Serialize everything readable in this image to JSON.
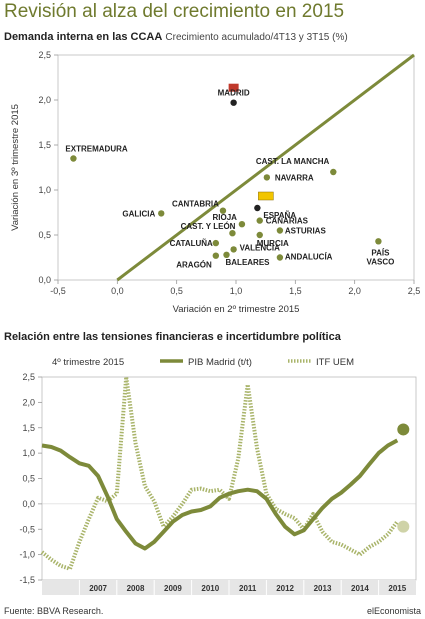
{
  "page": {
    "headline": "Revisión al alza del crecimiento en 2015",
    "subtitle1_bold": "Demanda interna en las CCAA",
    "subtitle1_light": "Crecimiento acumulado/4T13 y 3T15 (%)",
    "subtitle2": "Relación entre las tensiones financieras e incertidumbre política",
    "source": "Fuente: BBVA Research.",
    "brand": "elEconomista"
  },
  "chart_data": [
    {
      "type": "scatter",
      "title": "Demanda interna en las CCAA",
      "xlabel": "Variación en 2º trimestre 2015",
      "ylabel": "Variación en 3º trimestre 2015",
      "xlim": [
        -0.5,
        2.5
      ],
      "ylim": [
        0,
        2.5
      ],
      "x_ticks": [
        "-0,5",
        "0,0",
        "0,5",
        "1,0",
        "1,5",
        "2,0",
        "2,5"
      ],
      "y_ticks": [
        "0,0",
        "0,5",
        "1,0",
        "1,5",
        "2,0",
        "2,5"
      ],
      "reference_line": "y = x",
      "colors": {
        "point": "#7d8a3a",
        "highlight": "#222222",
        "line": "#7d8a3a",
        "badge_madrid": "#c0392b",
        "badge_espana": "#f2c500"
      },
      "points": [
        {
          "name": "EXTREMADURA",
          "x": -0.37,
          "y": 1.35
        },
        {
          "name": "MADRID",
          "x": 0.98,
          "y": 1.97,
          "highlight": true,
          "badge": "madrid"
        },
        {
          "name": "CAST. LA MANCHA",
          "x": 1.82,
          "y": 1.2
        },
        {
          "name": "NAVARRA",
          "x": 1.26,
          "y": 1.14
        },
        {
          "name": "ESPAÑA",
          "x": 1.18,
          "y": 0.8,
          "highlight": true,
          "badge": "espana"
        },
        {
          "name": "CANTABRIA",
          "x": 0.89,
          "y": 0.77
        },
        {
          "name": "CANARIAS",
          "x": 1.2,
          "y": 0.66
        },
        {
          "name": "GALICIA",
          "x": 0.37,
          "y": 0.74
        },
        {
          "name": "RIOJA",
          "x": 1.05,
          "y": 0.62
        },
        {
          "name": "ASTURIAS",
          "x": 1.37,
          "y": 0.55
        },
        {
          "name": "CAST. Y LEÓN",
          "x": 0.97,
          "y": 0.52
        },
        {
          "name": "MURCIA",
          "x": 1.2,
          "y": 0.5
        },
        {
          "name": "CATALUÑA",
          "x": 0.83,
          "y": 0.41
        },
        {
          "name": "VALENCIA",
          "x": 0.98,
          "y": 0.34
        },
        {
          "name": "ARAGÓN",
          "x": 0.83,
          "y": 0.27
        },
        {
          "name": "BALEARES",
          "x": 0.92,
          "y": 0.28
        },
        {
          "name": "ANDALUCÍA",
          "x": 1.37,
          "y": 0.25
        },
        {
          "name": "PAÍS\nVASCO",
          "x": 2.2,
          "y": 0.43
        }
      ]
    },
    {
      "type": "line",
      "title": "Relación entre las tensiones financieras e incertidumbre política",
      "legend_title": "4º trimestre 2015",
      "ylim": [
        -1.5,
        2.5
      ],
      "y_ticks": [
        "2,5",
        "2,0",
        "1,5",
        "1,0",
        "0,5",
        "0,0",
        "-0,5",
        "-1,0",
        "-1,5"
      ],
      "x_years": [
        "2007",
        "2008",
        "2009",
        "2010",
        "2011",
        "2012",
        "2013",
        "2014",
        "2015"
      ],
      "x_range": [
        2006.0,
        2016.0
      ],
      "series": [
        {
          "name": "PIB Madrid (t/t)",
          "style": "solid",
          "color": "#7d8a3a",
          "x": [
            2006.0,
            2006.25,
            2006.5,
            2006.75,
            2007.0,
            2007.25,
            2007.5,
            2007.75,
            2008.0,
            2008.25,
            2008.5,
            2008.75,
            2009.0,
            2009.25,
            2009.5,
            2009.75,
            2010.0,
            2010.25,
            2010.5,
            2010.75,
            2011.0,
            2011.25,
            2011.5,
            2011.75,
            2012.0,
            2012.25,
            2012.5,
            2012.75,
            2013.0,
            2013.25,
            2013.5,
            2013.75,
            2014.0,
            2014.25,
            2014.5,
            2014.75,
            2015.0,
            2015.25,
            2015.5
          ],
          "y": [
            1.15,
            1.12,
            1.05,
            0.92,
            0.8,
            0.75,
            0.55,
            0.15,
            -0.3,
            -0.55,
            -0.78,
            -0.88,
            -0.75,
            -0.55,
            -0.35,
            -0.22,
            -0.15,
            -0.12,
            -0.05,
            0.12,
            0.2,
            0.25,
            0.28,
            0.25,
            0.1,
            -0.2,
            -0.45,
            -0.6,
            -0.52,
            -0.3,
            -0.08,
            0.1,
            0.22,
            0.38,
            0.55,
            0.78,
            1.0,
            1.15,
            1.25
          ]
        },
        {
          "name": "ITF UEM",
          "style": "dotted",
          "color": "#a9b46a",
          "x": [
            2006.0,
            2006.25,
            2006.5,
            2006.75,
            2007.0,
            2007.25,
            2007.5,
            2007.75,
            2008.0,
            2008.25,
            2008.5,
            2008.75,
            2009.0,
            2009.25,
            2009.5,
            2009.75,
            2010.0,
            2010.25,
            2010.5,
            2010.75,
            2011.0,
            2011.25,
            2011.5,
            2011.75,
            2012.0,
            2012.25,
            2012.5,
            2012.75,
            2013.0,
            2013.25,
            2013.5,
            2013.75,
            2014.0,
            2014.25,
            2014.5,
            2014.75,
            2015.0,
            2015.25,
            2015.5
          ],
          "y": [
            -0.95,
            -1.1,
            -1.22,
            -1.28,
            -0.75,
            -0.3,
            0.12,
            0.05,
            0.2,
            2.5,
            1.2,
            0.35,
            0.05,
            -0.45,
            -0.25,
            0.0,
            0.28,
            0.3,
            0.25,
            0.28,
            0.1,
            0.9,
            2.35,
            1.1,
            0.2,
            -0.1,
            -0.2,
            -0.28,
            -0.5,
            -0.2,
            -0.55,
            -0.75,
            -0.8,
            -0.9,
            -1.0,
            -0.85,
            -0.75,
            -0.6,
            -0.35
          ]
        }
      ]
    }
  ]
}
